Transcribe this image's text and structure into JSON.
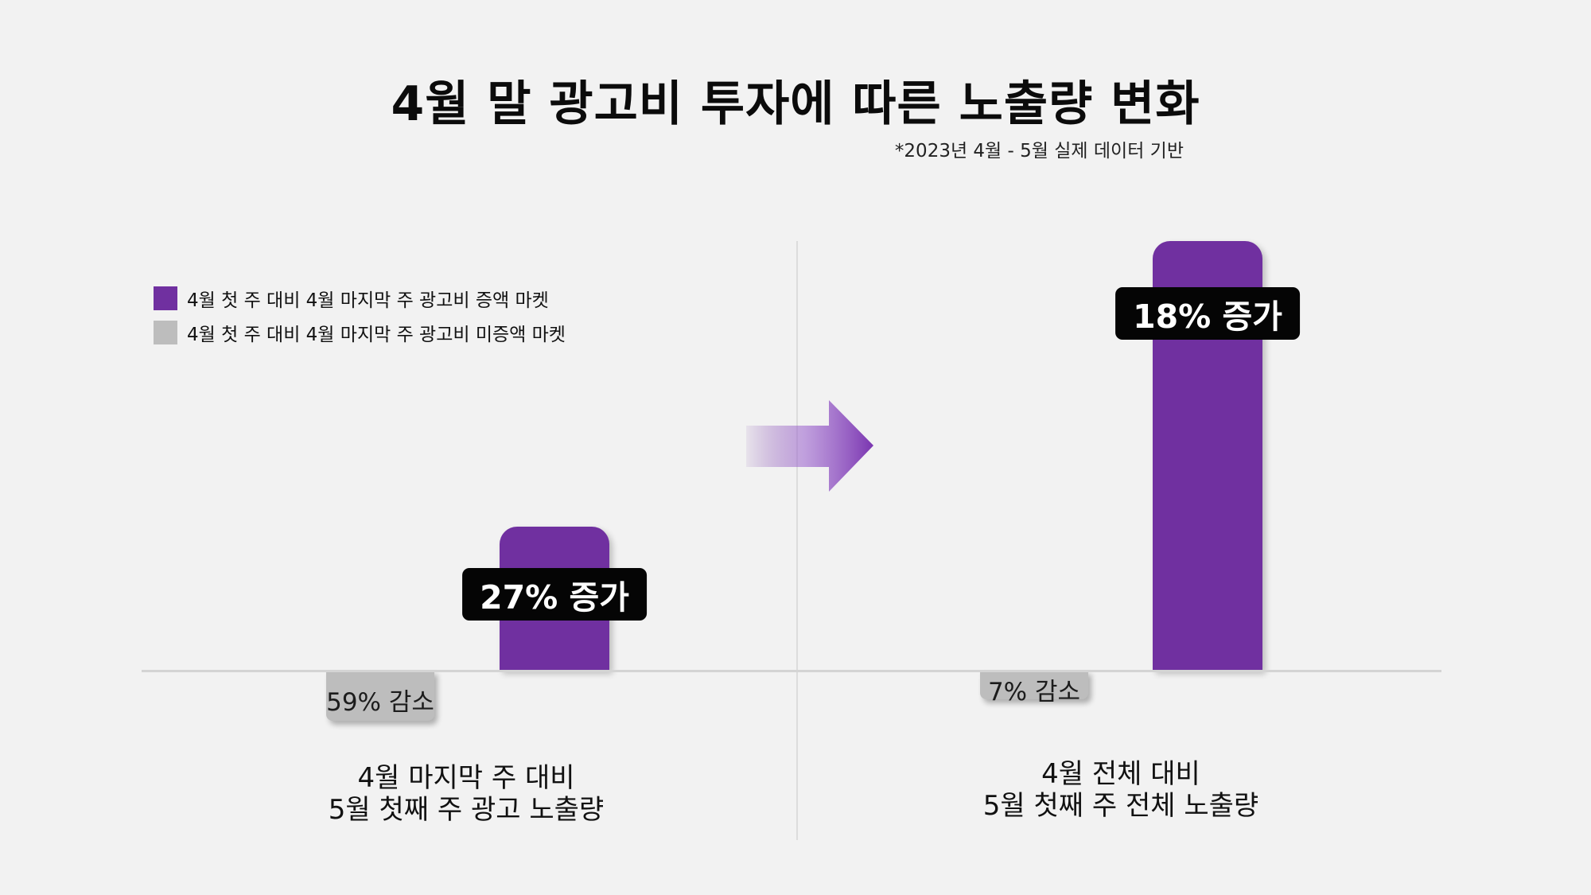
{
  "chart_data": {
    "type": "bar",
    "title": "4월 말 광고비 투자에 따른 노출량 변화",
    "subtitle": "*2023년 4월 - 5월 실제 데이터 기반",
    "categories": [
      "4월 마지막 주 대비\n5월 첫째 주 광고 노출량",
      "4월 전체 대비\n5월 첫째 주 전체 노출량"
    ],
    "series": [
      {
        "name": "4월 첫 주 대비 4월 마지막 주 광고비 미증액 마켓",
        "color": "#bdbdbd",
        "values": [
          -59,
          -7
        ],
        "labels": [
          "59% 감소",
          "7% 감소"
        ]
      },
      {
        "name": "4월 첫 주 대비 4월 마지막 주 광고비 증액 마켓",
        "color": "#7030a0",
        "values": [
          27,
          18
        ],
        "labels": [
          "27% 증가",
          "18% 증가"
        ]
      }
    ],
    "legend_position": "top-left",
    "grid": false
  },
  "colors": {
    "purple": "#7030a0",
    "gray": "#bdbdbd",
    "tag": "#050505"
  },
  "icons": {
    "arrow": "arrow-right-icon"
  }
}
